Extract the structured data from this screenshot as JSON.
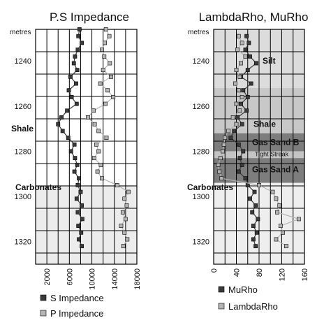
{
  "chart_data": [
    {
      "type": "scatter",
      "title": "P.S Impedance",
      "y_unit_label": "metres",
      "y_axis": {
        "range": [
          1226,
          1330
        ],
        "reversed": true,
        "ticks": [
          1240,
          1260,
          1280,
          1300,
          1320
        ]
      },
      "x_axis": {
        "range": [
          0,
          18000
        ],
        "ticks": [
          2000,
          6000,
          10000,
          14000,
          18000
        ]
      },
      "grid": true,
      "legend_position": "bottom",
      "annotations": [
        {
          "text": "Shale",
          "depth": 1270
        },
        {
          "text": "Carbonates",
          "depth": 1296
        }
      ],
      "shaded_zone": {
        "from_depth": 1295,
        "to_depth": 1330
      },
      "series": [
        {
          "name": "S Impedance",
          "color": "#3a3a3a",
          "depth": [
            1226,
            1229,
            1232,
            1235,
            1238,
            1241,
            1244,
            1247,
            1250,
            1253,
            1256,
            1259,
            1262,
            1265,
            1268,
            1271,
            1274,
            1277,
            1280,
            1283,
            1286,
            1289,
            1292,
            1295,
            1298,
            1301,
            1304,
            1307,
            1310,
            1313,
            1316,
            1319,
            1322
          ],
          "values": [
            7800,
            7600,
            8200,
            7500,
            7000,
            6800,
            7400,
            6200,
            7200,
            5900,
            6400,
            7300,
            5600,
            4600,
            4000,
            4800,
            5800,
            6900,
            6300,
            7000,
            7400,
            6900,
            7700,
            7500,
            8000,
            7300,
            8200,
            7500,
            8300,
            7600,
            8100,
            7700,
            8200
          ]
        },
        {
          "name": "P Impedance",
          "color": "#b4b4b4",
          "depth": [
            1226,
            1229,
            1232,
            1235,
            1238,
            1241,
            1244,
            1247,
            1250,
            1253,
            1256,
            1259,
            1262,
            1265,
            1268,
            1271,
            1274,
            1277,
            1280,
            1283,
            1286,
            1289,
            1292,
            1295,
            1298,
            1301,
            1304,
            1307,
            1310,
            1313,
            1316,
            1319,
            1322
          ],
          "values": [
            12500,
            13100,
            12300,
            11800,
            12200,
            13200,
            12000,
            13400,
            11500,
            12800,
            13800,
            12400,
            10300,
            9300,
            10500,
            11200,
            12600,
            10800,
            11200,
            10400,
            11600,
            11000,
            11800,
            14500,
            16500,
            15800,
            16200,
            15500,
            16000,
            15200,
            15800,
            16300,
            15600
          ]
        }
      ]
    },
    {
      "type": "scatter",
      "title": "LambdaRho, MuRho",
      "y_unit_label": "metres",
      "y_axis": {
        "range": [
          1226,
          1330
        ],
        "reversed": true,
        "ticks": [
          1240,
          1260,
          1280,
          1300,
          1320
        ]
      },
      "x_axis": {
        "range": [
          0,
          160
        ],
        "ticks": [
          0,
          40,
          80,
          120,
          160
        ]
      },
      "grid": true,
      "legend_position": "bottom",
      "annotations": [
        {
          "text": "Silt",
          "depth": 1240
        },
        {
          "text": "Shale",
          "depth": 1268
        },
        {
          "text": "Gas Sand B",
          "depth": 1276
        },
        {
          "text": "Tight Streak",
          "depth": 1281
        },
        {
          "text": "Gas Sand A",
          "depth": 1288
        },
        {
          "text": "Carbonates",
          "depth": 1296
        }
      ],
      "zones": [
        {
          "from_depth": 1226,
          "to_depth": 1252,
          "shade": "#dcdcdc"
        },
        {
          "from_depth": 1252,
          "to_depth": 1272,
          "shade": "#c8c8c8"
        },
        {
          "from_depth": 1272,
          "to_depth": 1280,
          "shade": "#7d7d7d"
        },
        {
          "from_depth": 1280,
          "to_depth": 1283,
          "shade": "#c4c4c4"
        },
        {
          "from_depth": 1283,
          "to_depth": 1294,
          "shade": "#7d7d7d"
        },
        {
          "from_depth": 1294,
          "to_depth": 1330,
          "shade": "#eeeeee"
        }
      ],
      "series": [
        {
          "name": "MuRho",
          "color": "#3a3a3a",
          "depth": [
            1229,
            1232,
            1235,
            1238,
            1241,
            1244,
            1247,
            1250,
            1253,
            1256,
            1259,
            1262,
            1265,
            1268,
            1271,
            1274,
            1277,
            1280,
            1283,
            1286,
            1289,
            1292,
            1295,
            1298,
            1301,
            1304,
            1307,
            1310,
            1313,
            1316,
            1319,
            1322
          ],
          "values": [
            58,
            62,
            56,
            64,
            75,
            60,
            48,
            66,
            52,
            60,
            48,
            58,
            42,
            50,
            36,
            30,
            44,
            52,
            46,
            50,
            44,
            56,
            60,
            72,
            64,
            74,
            68,
            78,
            70,
            76,
            70,
            74
          ]
        },
        {
          "name": "LambdaRho",
          "color": "#b4b4b4",
          "depth": [
            1229,
            1232,
            1235,
            1238,
            1241,
            1244,
            1247,
            1250,
            1253,
            1256,
            1259,
            1262,
            1265,
            1268,
            1271,
            1274,
            1277,
            1280,
            1283,
            1286,
            1289,
            1292,
            1295,
            1298,
            1301,
            1304,
            1307,
            1310,
            1313,
            1316,
            1319,
            1322
          ],
          "values": [
            44,
            50,
            42,
            56,
            48,
            40,
            46,
            38,
            44,
            50,
            40,
            46,
            34,
            40,
            26,
            20,
            18,
            16,
            12,
            8,
            10,
            14,
            80,
            104,
            110,
            116,
            112,
            150,
            118,
            122,
            110,
            128
          ]
        }
      ]
    }
  ]
}
